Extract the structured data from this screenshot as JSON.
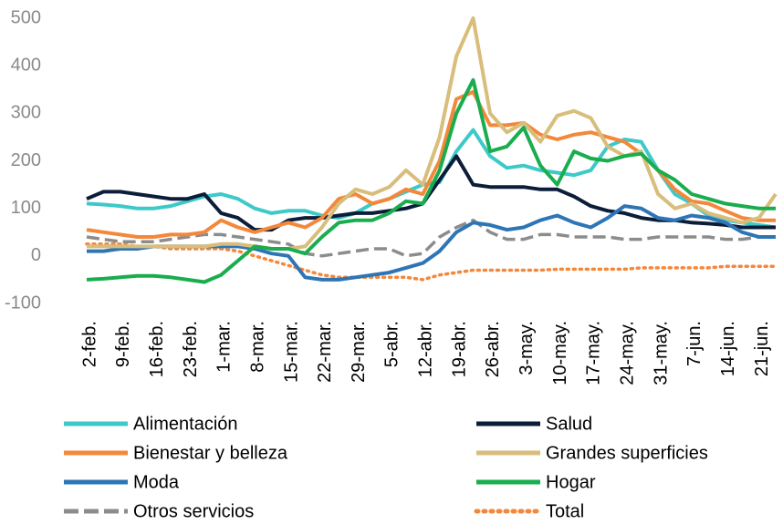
{
  "chart_data": {
    "type": "line",
    "categories": [
      "2-feb.",
      null,
      "9-feb.",
      null,
      "16-feb.",
      null,
      "23-feb.",
      null,
      "1-mar.",
      null,
      "8-mar.",
      null,
      "15-mar.",
      null,
      "22-mar.",
      null,
      "29-mar.",
      null,
      "5-abr.",
      null,
      "12-abr.",
      null,
      "19-abr.",
      null,
      "26-abr.",
      null,
      "3-may.",
      null,
      "10-may.",
      null,
      "17-may.",
      null,
      "24-may.",
      null,
      "31-may.",
      null,
      "7-jun.",
      null,
      "14-jun.",
      null,
      "21-jun.",
      null
    ],
    "ylim": [
      -100,
      500
    ],
    "yticks": [
      -100,
      0,
      100,
      200,
      300,
      400,
      500
    ],
    "grid": false,
    "legend": "bottom",
    "series": [
      {
        "name": "Alimentación",
        "color": "#3ec9c9",
        "style": "solid",
        "values": [
          110,
          108,
          105,
          100,
          100,
          105,
          115,
          125,
          130,
          120,
          100,
          90,
          95,
          95,
          85,
          80,
          90,
          110,
          120,
          135,
          150,
          155,
          220,
          265,
          210,
          185,
          190,
          180,
          175,
          170,
          180,
          230,
          245,
          240,
          180,
          130,
          110,
          85,
          75,
          70,
          65,
          60
        ]
      },
      {
        "name": "Salud",
        "color": "#0c1d3a",
        "style": "solid",
        "values": [
          120,
          135,
          135,
          130,
          125,
          120,
          120,
          130,
          90,
          80,
          55,
          55,
          75,
          80,
          80,
          85,
          90,
          90,
          95,
          100,
          110,
          160,
          210,
          150,
          145,
          145,
          145,
          140,
          140,
          125,
          105,
          95,
          90,
          80,
          75,
          75,
          70,
          68,
          65,
          60,
          60,
          60
        ]
      },
      {
        "name": "Bienestar y belleza",
        "color": "#f4883a",
        "style": "solid",
        "values": [
          55,
          50,
          45,
          40,
          40,
          45,
          45,
          50,
          75,
          60,
          50,
          60,
          70,
          60,
          80,
          120,
          130,
          110,
          120,
          140,
          130,
          200,
          330,
          345,
          275,
          275,
          280,
          255,
          245,
          255,
          260,
          250,
          240,
          215,
          180,
          140,
          115,
          110,
          95,
          80,
          75,
          75
        ]
      },
      {
        "name": "Grandes superficies",
        "color": "#d8bd7b",
        "style": "solid",
        "values": [
          20,
          20,
          20,
          20,
          20,
          20,
          20,
          20,
          25,
          25,
          20,
          15,
          15,
          20,
          60,
          110,
          140,
          130,
          145,
          180,
          150,
          250,
          420,
          500,
          300,
          260,
          280,
          240,
          295,
          305,
          290,
          230,
          210,
          220,
          130,
          100,
          110,
          90,
          80,
          70,
          80,
          130
        ]
      },
      {
        "name": "Moda",
        "color": "#2e75b6",
        "style": "solid",
        "values": [
          10,
          10,
          15,
          15,
          20,
          20,
          20,
          20,
          20,
          20,
          15,
          5,
          0,
          -45,
          -50,
          -50,
          -45,
          -40,
          -35,
          -25,
          -15,
          10,
          50,
          70,
          65,
          55,
          60,
          75,
          85,
          70,
          60,
          80,
          105,
          100,
          80,
          75,
          85,
          80,
          70,
          50,
          40,
          40
        ]
      },
      {
        "name": "Hogar",
        "color": "#1aad4e",
        "style": "solid",
        "values": [
          -50,
          -48,
          -45,
          -42,
          -42,
          -45,
          -50,
          -55,
          -40,
          -10,
          20,
          15,
          15,
          5,
          40,
          70,
          75,
          75,
          90,
          115,
          110,
          180,
          300,
          370,
          220,
          230,
          270,
          190,
          150,
          220,
          205,
          200,
          210,
          215,
          180,
          160,
          130,
          120,
          110,
          105,
          100,
          100
        ]
      },
      {
        "name": "Otros servicios",
        "color": "#8c8c8c",
        "style": "dashed",
        "values": [
          40,
          35,
          30,
          30,
          30,
          35,
          40,
          45,
          45,
          40,
          35,
          30,
          25,
          5,
          0,
          5,
          10,
          15,
          15,
          0,
          5,
          40,
          60,
          75,
          50,
          35,
          35,
          45,
          45,
          40,
          40,
          40,
          35,
          35,
          40,
          40,
          40,
          40,
          35,
          35,
          40,
          40
        ]
      },
      {
        "name": "Total",
        "color": "#f4883a",
        "style": "dotted",
        "values": [
          25,
          25,
          25,
          20,
          20,
          15,
          15,
          15,
          15,
          10,
          0,
          -10,
          -20,
          -30,
          -40,
          -45,
          -45,
          -45,
          -45,
          -45,
          -50,
          -40,
          -35,
          -30,
          -30,
          -30,
          -30,
          -30,
          -28,
          -28,
          -28,
          -28,
          -28,
          -25,
          -25,
          -25,
          -25,
          -25,
          -22,
          -22,
          -22,
          -22
        ]
      }
    ]
  }
}
